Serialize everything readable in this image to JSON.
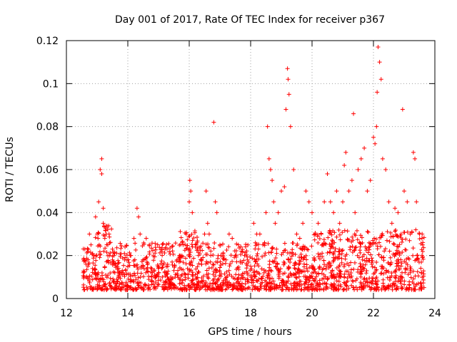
{
  "chart_data": {
    "type": "scatter",
    "title": "Day 001 of 2017, Rate Of TEC Index for receiver p367",
    "xlabel": "GPS time / hours",
    "ylabel": "ROTI / TECUs",
    "xlim": [
      12,
      24
    ],
    "ylim": [
      0,
      0.12
    ],
    "x_ticks": [
      12,
      14,
      16,
      18,
      20,
      22,
      24
    ],
    "x_tick_labels": [
      "12",
      "14",
      "16",
      "18",
      "20",
      "22",
      "24"
    ],
    "y_ticks": [
      0,
      0.02,
      0.04,
      0.06,
      0.08,
      0.1,
      0.12
    ],
    "y_tick_labels": [
      "0",
      "0.02",
      "0.04",
      "0.06",
      "0.08",
      "0.1",
      "0.12"
    ],
    "grid": true,
    "marker": "+",
    "color": "#ff0000",
    "series": [
      {
        "name": "ROTI",
        "description_points_sampled": true,
        "x": [
          12.55,
          12.6,
          12.7,
          12.75,
          12.8,
          12.9,
          12.95,
          13.0,
          13.05,
          13.1,
          13.15,
          13.15,
          13.2,
          13.2,
          13.25,
          13.3,
          13.35,
          13.4,
          13.5,
          13.6,
          13.7,
          13.8,
          13.9,
          14.0,
          14.1,
          14.2,
          14.3,
          14.35,
          14.4,
          14.5,
          14.6,
          14.7,
          14.8,
          14.9,
          15.0,
          15.1,
          15.2,
          15.3,
          15.4,
          15.5,
          15.6,
          15.7,
          15.8,
          15.9,
          16.0,
          16.02,
          16.05,
          16.1,
          16.2,
          16.3,
          16.4,
          16.5,
          16.55,
          16.6,
          16.65,
          16.7,
          16.8,
          16.85,
          16.9,
          17.0,
          17.1,
          17.2,
          17.3,
          17.4,
          17.5,
          17.6,
          17.7,
          17.8,
          17.9,
          18.0,
          18.1,
          18.2,
          18.3,
          18.4,
          18.5,
          18.55,
          18.6,
          18.65,
          18.7,
          18.75,
          18.8,
          18.9,
          19.0,
          19.1,
          19.15,
          19.2,
          19.22,
          19.25,
          19.3,
          19.4,
          19.5,
          19.6,
          19.7,
          19.8,
          19.9,
          20.0,
          20.1,
          20.2,
          20.3,
          20.4,
          20.5,
          20.6,
          20.7,
          20.8,
          20.9,
          21.0,
          21.05,
          21.1,
          21.2,
          21.3,
          21.35,
          21.4,
          21.5,
          21.6,
          21.7,
          21.8,
          21.9,
          22.0,
          22.05,
          22.1,
          22.12,
          22.15,
          22.2,
          22.25,
          22.3,
          22.4,
          22.5,
          22.6,
          22.7,
          22.8,
          22.9,
          22.95,
          23.0,
          23.1,
          23.2,
          23.3,
          23.35,
          23.4,
          23.5,
          23.6
        ],
        "y": [
          0.012,
          0.023,
          0.015,
          0.03,
          0.025,
          0.02,
          0.038,
          0.03,
          0.045,
          0.06,
          0.065,
          0.058,
          0.042,
          0.035,
          0.028,
          0.03,
          0.025,
          0.02,
          0.018,
          0.016,
          0.014,
          0.012,
          0.018,
          0.015,
          0.02,
          0.028,
          0.042,
          0.038,
          0.03,
          0.015,
          0.028,
          0.025,
          0.012,
          0.01,
          0.012,
          0.014,
          0.012,
          0.015,
          0.01,
          0.013,
          0.018,
          0.02,
          0.025,
          0.03,
          0.045,
          0.055,
          0.05,
          0.04,
          0.025,
          0.02,
          0.018,
          0.03,
          0.05,
          0.035,
          0.03,
          0.02,
          0.082,
          0.045,
          0.04,
          0.025,
          0.02,
          0.018,
          0.03,
          0.028,
          0.02,
          0.025,
          0.022,
          0.02,
          0.018,
          0.015,
          0.035,
          0.03,
          0.03,
          0.025,
          0.04,
          0.08,
          0.065,
          0.06,
          0.055,
          0.045,
          0.035,
          0.04,
          0.05,
          0.052,
          0.088,
          0.107,
          0.102,
          0.095,
          0.08,
          0.06,
          0.03,
          0.028,
          0.035,
          0.05,
          0.045,
          0.04,
          0.03,
          0.035,
          0.03,
          0.045,
          0.058,
          0.045,
          0.04,
          0.05,
          0.035,
          0.045,
          0.062,
          0.068,
          0.05,
          0.055,
          0.086,
          0.04,
          0.06,
          0.065,
          0.07,
          0.05,
          0.055,
          0.075,
          0.072,
          0.08,
          0.096,
          0.117,
          0.11,
          0.102,
          0.065,
          0.06,
          0.045,
          0.035,
          0.042,
          0.04,
          0.03,
          0.088,
          0.05,
          0.045,
          0.03,
          0.068,
          0.065,
          0.045,
          0.03,
          0.025
        ]
      }
    ]
  }
}
